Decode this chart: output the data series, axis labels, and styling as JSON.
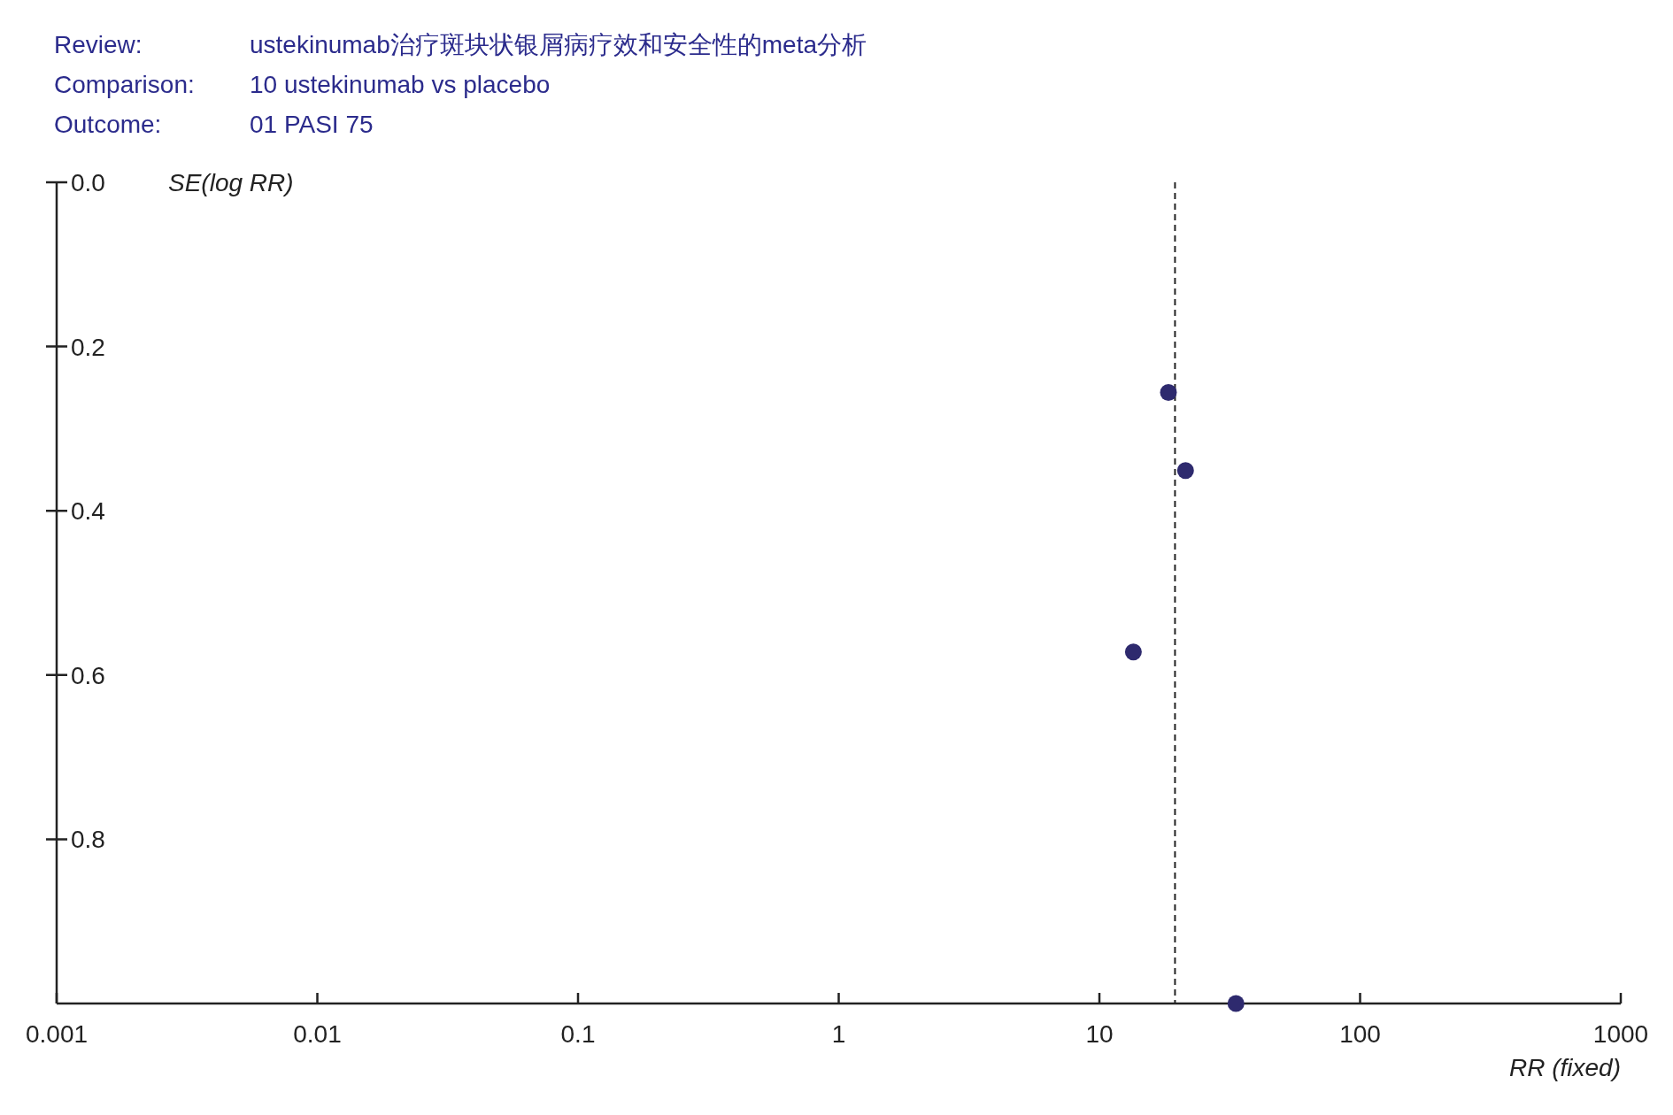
{
  "chart_data": {
    "type": "scatter",
    "annotations": [
      "Review:",
      "ustekinumab治疗斑块状银屑病疗效和安全性的meta分析",
      "Comparison:",
      "10 ustekinumab vs placebo",
      "Outcome:",
      "01 PASI 75"
    ],
    "xlabel": "RR (fixed)",
    "ylabel": "SE(log RR)",
    "log": "x",
    "series": [
      {
        "color": "#2e2a6e",
        "x": [
          18.4,
          21.4,
          13.5,
          33.4
        ],
        "values": [
          0.256,
          0.351,
          0.572,
          1.0
        ]
      }
    ],
    "xlim": [
      0.001,
      1000
    ],
    "xticks": [
      0.001,
      0.01,
      0.1,
      1,
      10,
      100,
      1000
    ],
    "ylim": [
      1.0,
      0.0
    ],
    "yticks": [
      {
        "value": 0,
        "label": "0.0"
      },
      0.2,
      0.4,
      0.6,
      0.8
    ],
    "ref_lines": [
      {
        "axis": "x",
        "value": 19.5,
        "color": "#222222",
        "line_style": "dashed"
      }
    ],
    "marker": "circle",
    "grid": false
  }
}
